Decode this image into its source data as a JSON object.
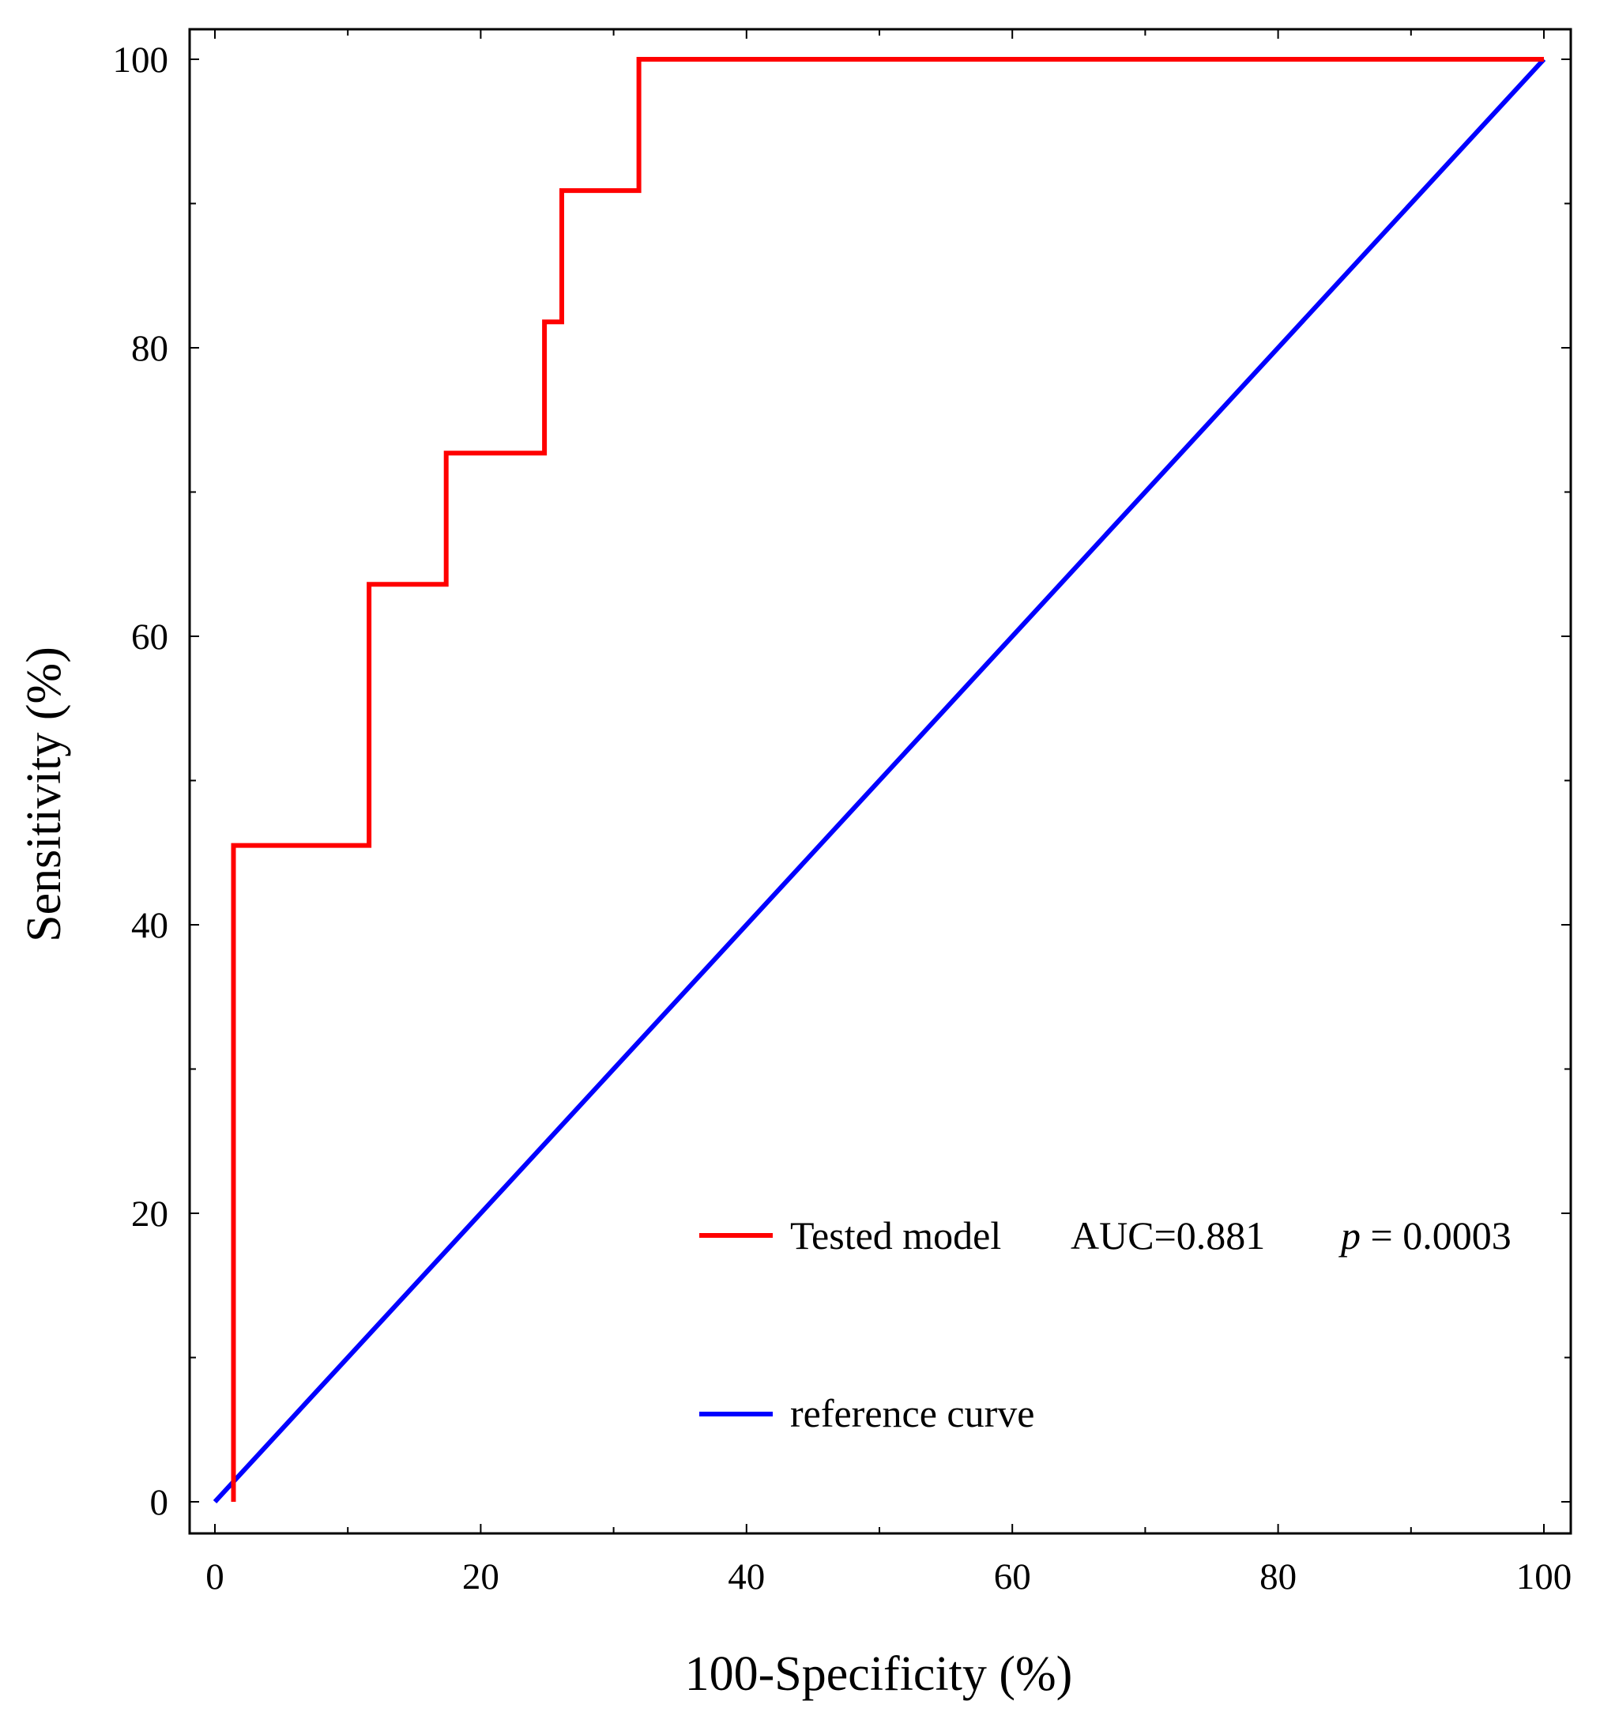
{
  "chart_data": {
    "type": "line",
    "title": "",
    "xlabel": "100-Specificity (%)",
    "ylabel": "Sensitivity (%)",
    "xlim": [
      0,
      100
    ],
    "ylim": [
      0,
      100
    ],
    "xticks": [
      "0",
      "20",
      "40",
      "60",
      "80",
      "100"
    ],
    "yticks": [
      "0",
      "20",
      "40",
      "60",
      "80",
      "100"
    ],
    "xtick_values": [
      0,
      20,
      40,
      60,
      80,
      100
    ],
    "ytick_values": [
      0,
      20,
      40,
      60,
      80,
      100
    ],
    "grid": false,
    "legend_position": "bottom-right",
    "series": [
      {
        "name": "Tested model",
        "color": "#ff0000",
        "x": [
          1.4,
          1.4,
          11.6,
          11.6,
          17.4,
          17.4,
          24.8,
          24.8,
          26.1,
          26.1,
          31.9,
          31.9,
          100
        ],
        "y": [
          0,
          45.5,
          45.5,
          63.6,
          63.6,
          72.7,
          72.7,
          81.8,
          81.8,
          90.9,
          90.9,
          100,
          100
        ]
      },
      {
        "name": "reference curve",
        "color": "#0000ff",
        "x": [
          0,
          100
        ],
        "y": [
          0,
          100
        ]
      }
    ],
    "legend": [
      {
        "label": "Tested model",
        "auc": "AUC=0.881",
        "p_symbol": "p",
        "p_value": " = 0.0003",
        "color": "#ff0000"
      },
      {
        "label": "reference curve",
        "color": "#0000ff"
      }
    ]
  }
}
